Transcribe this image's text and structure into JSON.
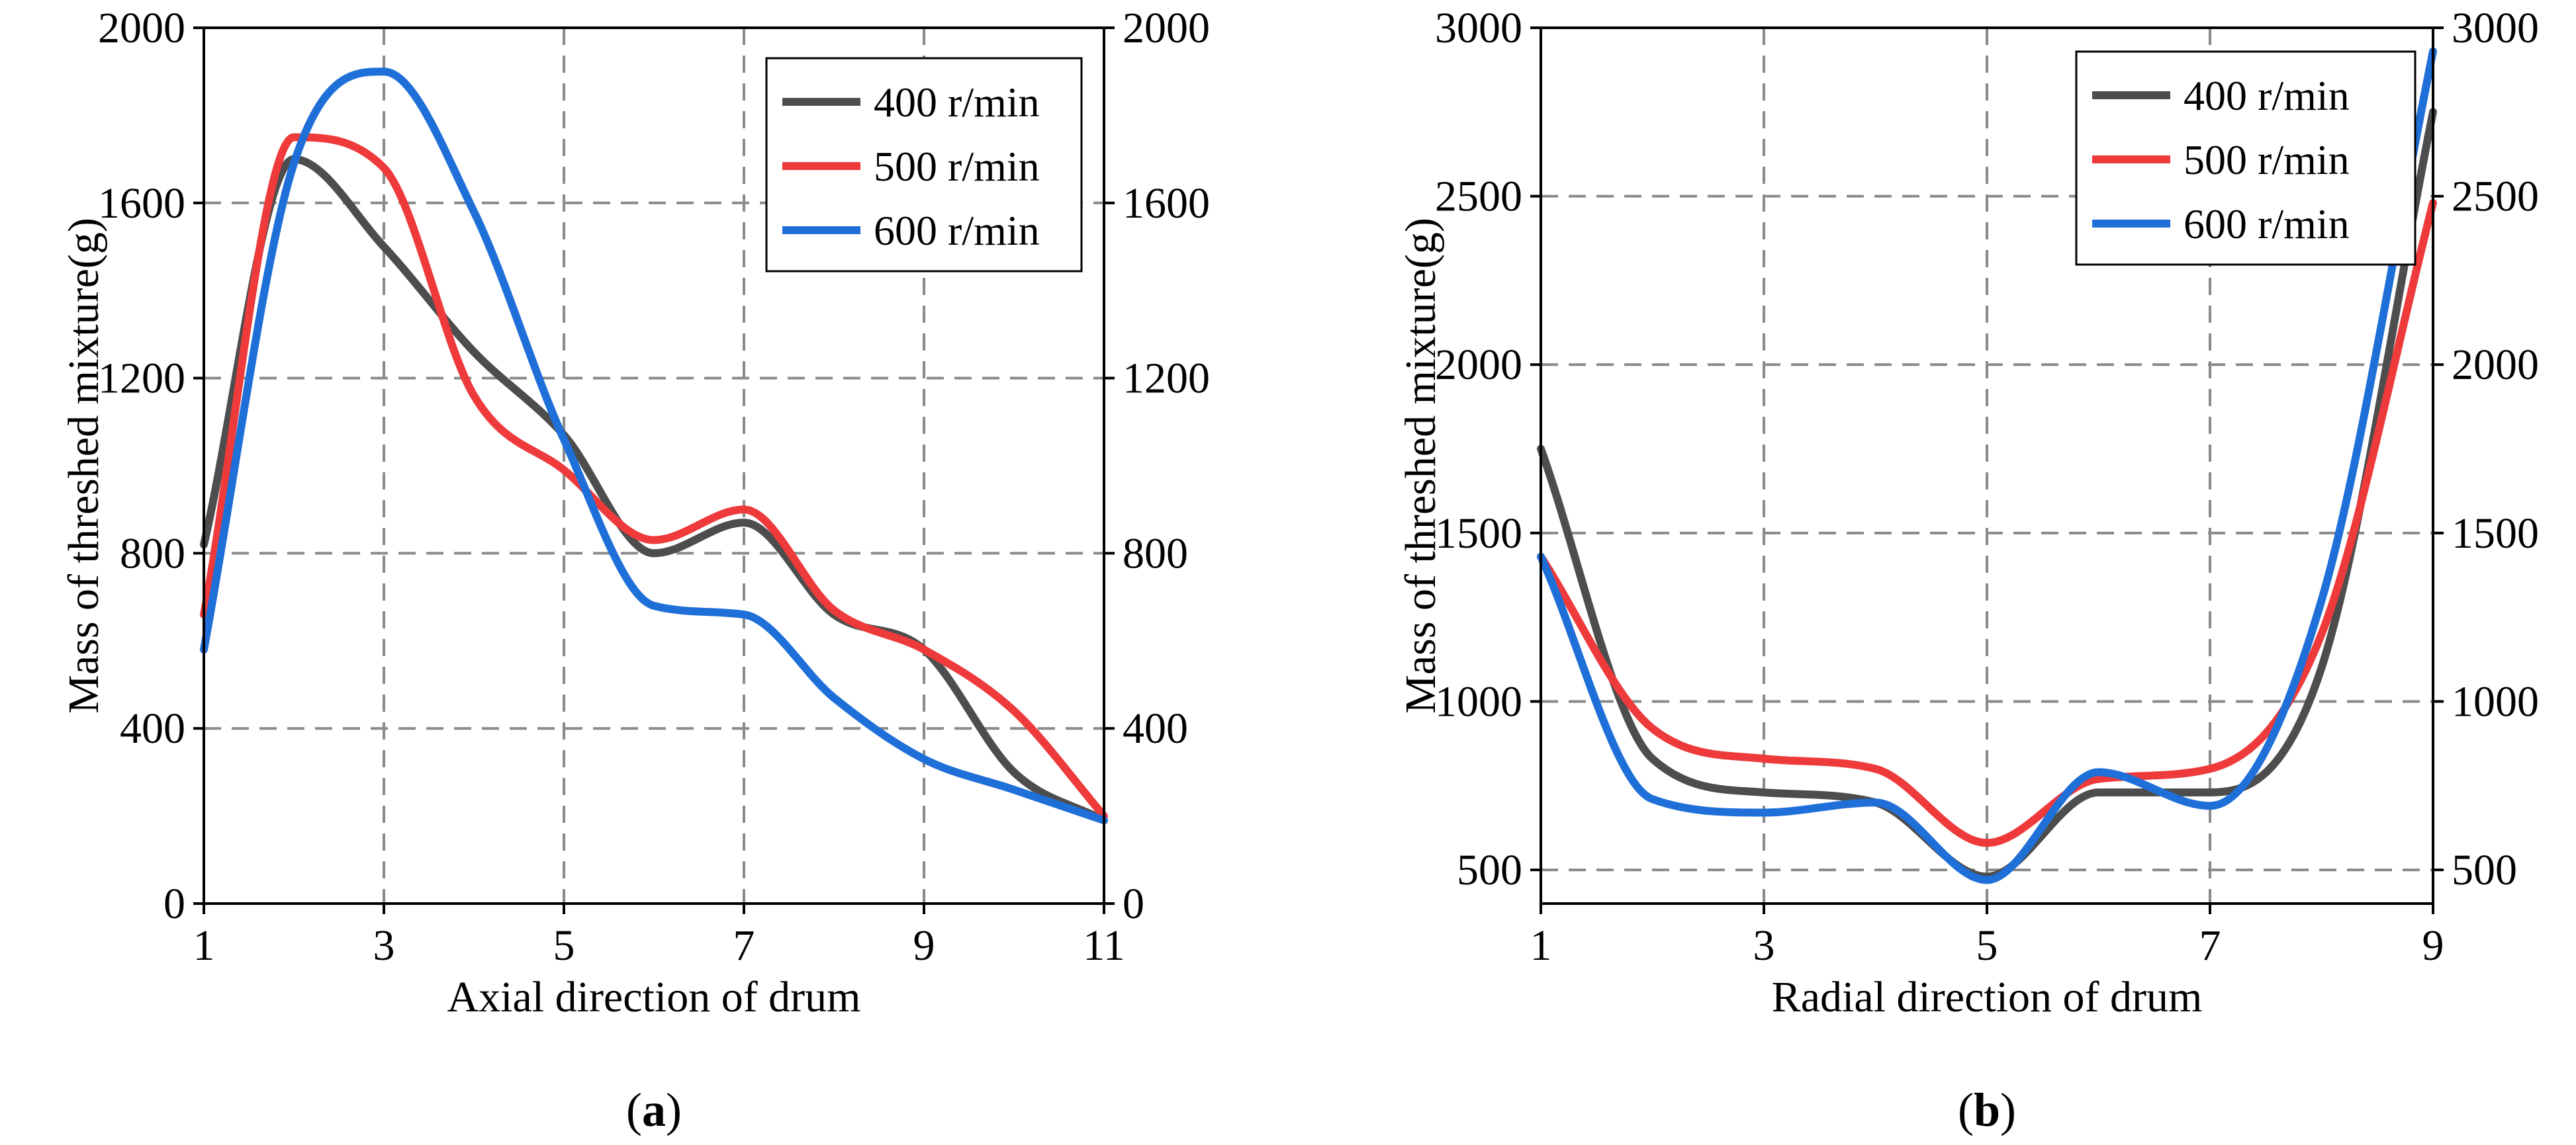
{
  "chart_data": [
    {
      "type": "line",
      "panel_label_open": "(",
      "panel_label_letter": "a",
      "panel_label_close": ")",
      "xlabel": "Axial direction of drum",
      "ylabel": "Mass of threshed mixture(g)",
      "xlim": [
        1,
        11
      ],
      "ylim": [
        0,
        2000
      ],
      "xticks": [
        "1",
        "3",
        "5",
        "7",
        "9",
        "11"
      ],
      "yticks": [
        "0",
        "400",
        "800",
        "1200",
        "1600",
        "2000"
      ],
      "yticks_right": [
        "0",
        "400",
        "800",
        "1200",
        "1600",
        "2000"
      ],
      "grid": true,
      "legend_position": "top-right",
      "x": [
        1,
        2,
        3,
        4,
        5,
        6,
        7,
        8,
        9,
        10,
        11
      ],
      "series": [
        {
          "name": "400 r/min",
          "color": "#4d4d4d",
          "values": [
            820,
            1700,
            1500,
            1260,
            1070,
            800,
            870,
            660,
            580,
            300,
            190
          ]
        },
        {
          "name": "500 r/min",
          "color": "#ee3a3a",
          "values": [
            660,
            1750,
            1680,
            1160,
            990,
            830,
            900,
            670,
            580,
            440,
            200
          ]
        },
        {
          "name": "600 r/min",
          "color": "#1f6fd8",
          "values": [
            580,
            1690,
            1900,
            1580,
            1060,
            680,
            660,
            470,
            330,
            260,
            190
          ]
        }
      ]
    },
    {
      "type": "line",
      "panel_label_open": "(",
      "panel_label_letter": "b",
      "panel_label_close": ")",
      "xlabel": "Radial direction of drum",
      "ylabel": "Mass of threshed mixture(g)",
      "xlim": [
        1,
        9
      ],
      "ylim": [
        400,
        3000
      ],
      "xticks": [
        "1",
        "3",
        "5",
        "7",
        "9"
      ],
      "yticks": [
        "500",
        "1000",
        "1500",
        "2000",
        "2500",
        "3000"
      ],
      "yticks_right": [
        "500",
        "1000",
        "1500",
        "2000",
        "2500",
        "3000"
      ],
      "grid": true,
      "legend_position": "top-right",
      "x": [
        1,
        2,
        3,
        4,
        5,
        6,
        7,
        8,
        9
      ],
      "series": [
        {
          "name": "400 r/min",
          "color": "#4d4d4d",
          "values": [
            1750,
            830,
            730,
            700,
            480,
            730,
            730,
            1100,
            2750
          ]
        },
        {
          "name": "500 r/min",
          "color": "#ee3a3a",
          "values": [
            1430,
            920,
            830,
            800,
            580,
            770,
            800,
            1200,
            2480
          ]
        },
        {
          "name": "600 r/min",
          "color": "#1f6fd8",
          "values": [
            1430,
            710,
            670,
            700,
            470,
            790,
            690,
            1300,
            2930
          ]
        }
      ]
    }
  ]
}
